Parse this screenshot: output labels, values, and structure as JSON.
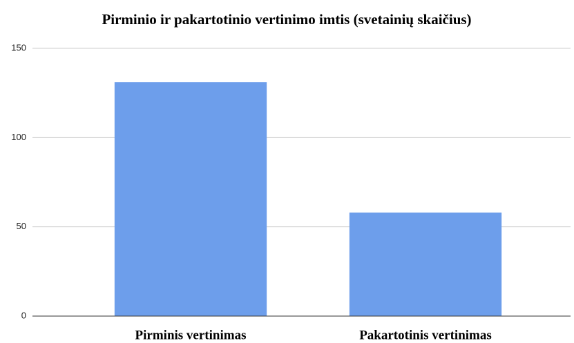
{
  "chart_data": {
    "type": "bar",
    "title": "Pirminio ir pakartotinio vertinimo imtis (svetainių skaičius)",
    "categories": [
      "Pirminis vertinimas",
      "Pakartotinis vertinimas"
    ],
    "values": [
      131,
      58
    ],
    "color": "#6d9eeb",
    "ylim": [
      0,
      150
    ],
    "yticks": [
      0,
      50,
      100,
      150
    ],
    "grid": true
  }
}
